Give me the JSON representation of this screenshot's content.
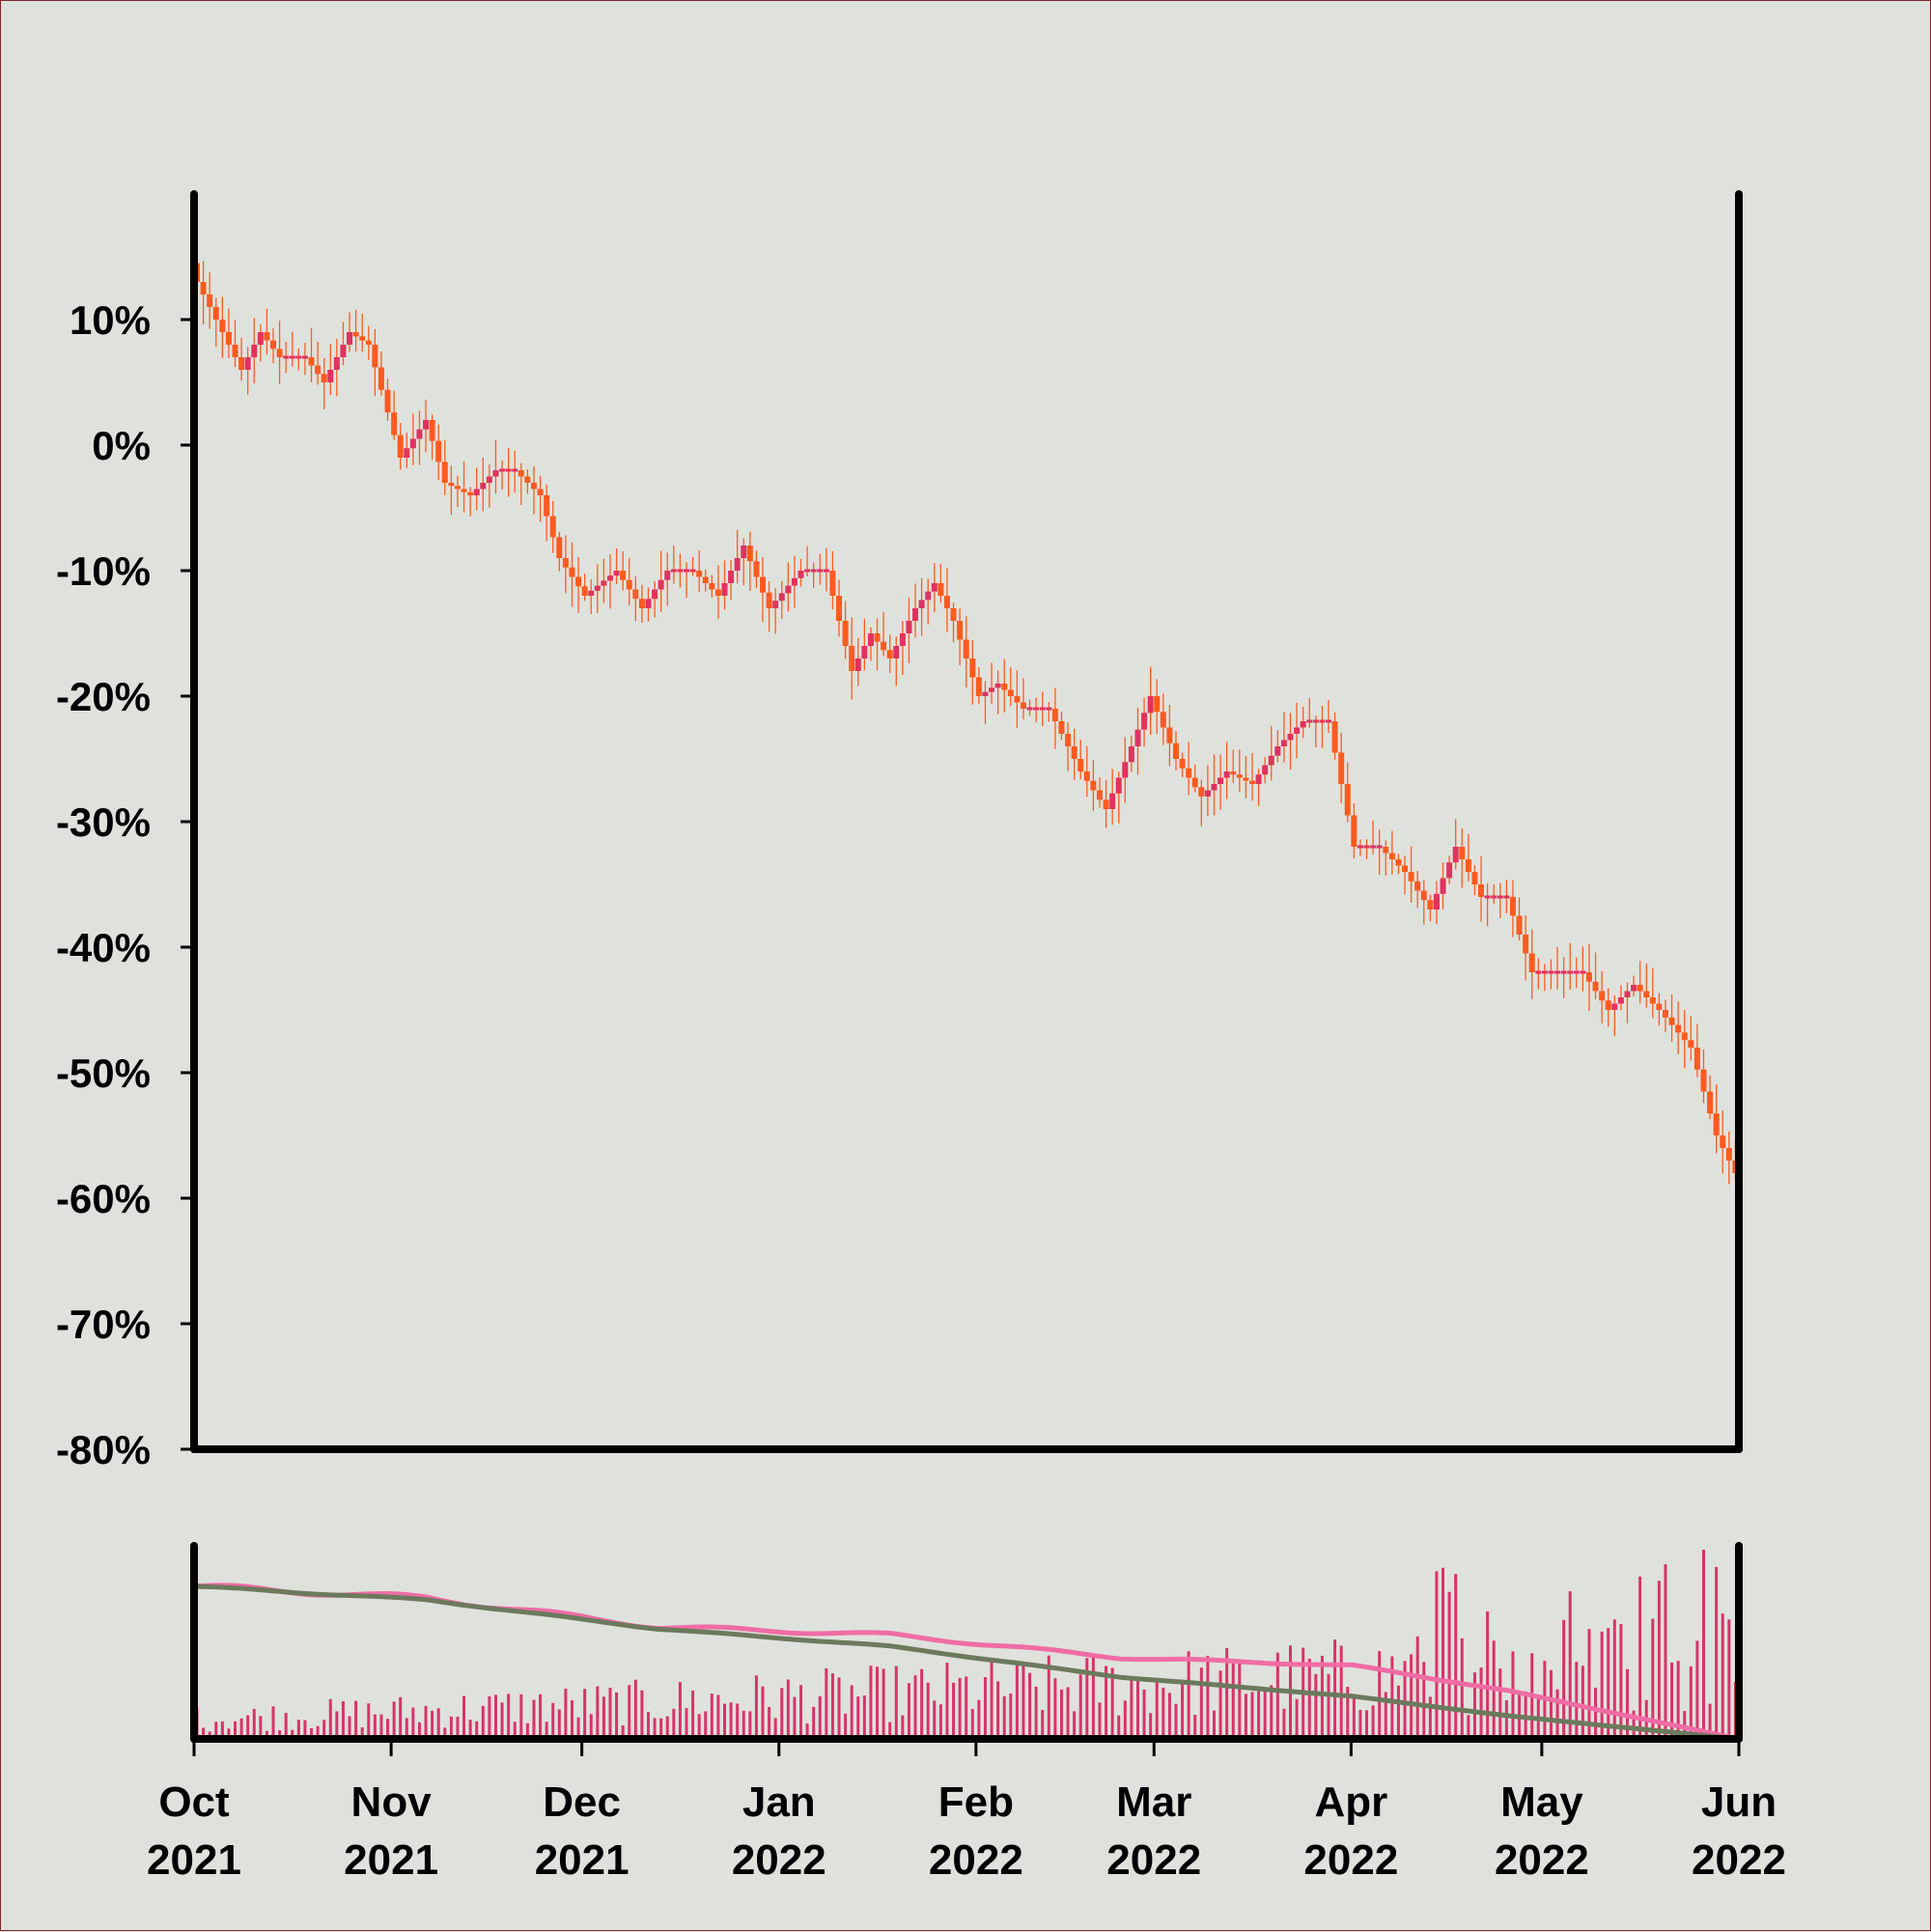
{
  "chart_data": [
    {
      "type": "ohlc",
      "y_unit": "%",
      "ylim": [
        -80,
        20
      ],
      "y_ticks": [
        "10%",
        "0%",
        "-10%",
        "-20%",
        "-30%",
        "-40%",
        "-50%",
        "-60%",
        "-70%",
        "-80%"
      ],
      "y_tick_values": [
        10,
        0,
        -10,
        -20,
        -30,
        -40,
        -50,
        -60,
        -70,
        -80
      ],
      "xlim": [
        "2021-10-01",
        "2022-06-01"
      ],
      "grid": false,
      "colors": {
        "up": "#e0335f",
        "down": "#ff5a1f"
      },
      "path_key_points": [
        [
          "2021-10-01",
          13
        ],
        [
          "2021-10-05",
          9
        ],
        [
          "2021-10-08",
          6
        ],
        [
          "2021-10-11",
          9
        ],
        [
          "2021-10-14",
          7
        ],
        [
          "2021-10-18",
          7
        ],
        [
          "2021-10-21",
          5
        ],
        [
          "2021-10-25",
          9
        ],
        [
          "2021-10-28",
          8
        ],
        [
          "2021-11-02",
          -1
        ],
        [
          "2021-11-06",
          2
        ],
        [
          "2021-11-09",
          -3
        ],
        [
          "2021-11-13",
          -4
        ],
        [
          "2021-11-17",
          -2
        ],
        [
          "2021-11-20",
          -2
        ],
        [
          "2021-11-24",
          -4
        ],
        [
          "2021-11-27",
          -9
        ],
        [
          "2021-12-01",
          -12
        ],
        [
          "2021-12-06",
          -10
        ],
        [
          "2021-12-10",
          -13
        ],
        [
          "2021-12-14",
          -10
        ],
        [
          "2021-12-18",
          -10
        ],
        [
          "2021-12-22",
          -12
        ],
        [
          "2021-12-26",
          -8
        ],
        [
          "2021-12-30",
          -13
        ],
        [
          "2022-01-04",
          -10
        ],
        [
          "2022-01-08",
          -10
        ],
        [
          "2022-01-12",
          -18
        ],
        [
          "2022-01-15",
          -15
        ],
        [
          "2022-01-18",
          -17
        ],
        [
          "2022-01-22",
          -13
        ],
        [
          "2022-01-25",
          -11
        ],
        [
          "2022-01-28",
          -14
        ],
        [
          "2022-02-01",
          -20
        ],
        [
          "2022-02-04",
          -19
        ],
        [
          "2022-02-08",
          -21
        ],
        [
          "2022-02-12",
          -21
        ],
        [
          "2022-02-17",
          -26
        ],
        [
          "2022-02-21",
          -29
        ],
        [
          "2022-02-25",
          -24
        ],
        [
          "2022-02-28",
          -20
        ],
        [
          "2022-03-04",
          -25
        ],
        [
          "2022-03-08",
          -28
        ],
        [
          "2022-03-12",
          -26
        ],
        [
          "2022-03-16",
          -27
        ],
        [
          "2022-03-20",
          -24
        ],
        [
          "2022-03-24",
          -22
        ],
        [
          "2022-03-28",
          -22
        ],
        [
          "2022-04-01",
          -32
        ],
        [
          "2022-04-05",
          -32
        ],
        [
          "2022-04-09",
          -34
        ],
        [
          "2022-04-13",
          -37
        ],
        [
          "2022-04-17",
          -32
        ],
        [
          "2022-04-21",
          -36
        ],
        [
          "2022-04-25",
          -36
        ],
        [
          "2022-04-29",
          -42
        ],
        [
          "2022-05-03",
          -42
        ],
        [
          "2022-05-07",
          -42
        ],
        [
          "2022-05-11",
          -45
        ],
        [
          "2022-05-15",
          -43
        ],
        [
          "2022-05-19",
          -45
        ],
        [
          "2022-05-24",
          -48
        ],
        [
          "2022-05-28",
          -55
        ],
        [
          "2022-06-01",
          -59
        ]
      ]
    },
    {
      "type": "bar+line",
      "name": "volume",
      "y_ticks": [],
      "x_ticks": [
        {
          "month": "Oct",
          "year": "2021"
        },
        {
          "month": "Nov",
          "year": "2021"
        },
        {
          "month": "Dec",
          "year": "2021"
        },
        {
          "month": "Jan",
          "year": "2022"
        },
        {
          "month": "Feb",
          "year": "2022"
        },
        {
          "month": "Mar",
          "year": "2022"
        },
        {
          "month": "Apr",
          "year": "2022"
        },
        {
          "month": "May",
          "year": "2022"
        },
        {
          "month": "Jun",
          "year": "2022"
        }
      ],
      "x_tick_dates": [
        "2021-10-01",
        "2021-11-01",
        "2021-12-01",
        "2022-01-01",
        "2022-02-01",
        "2022-03-01",
        "2022-04-01",
        "2022-05-01",
        "2022-06-01"
      ],
      "bar_color": "#d8336a",
      "line_colors": [
        "#f06ca6",
        "#6b7a5d"
      ],
      "line_fast_key_points": [
        [
          0,
          0.79
        ],
        [
          0.15,
          0.73
        ],
        [
          0.3,
          0.58
        ],
        [
          0.45,
          0.54
        ],
        [
          0.6,
          0.42
        ],
        [
          0.75,
          0.38
        ],
        [
          0.85,
          0.25
        ],
        [
          1.0,
          0.0
        ]
      ],
      "line_slow_key_points": [
        [
          0,
          0.79
        ],
        [
          0.15,
          0.72
        ],
        [
          0.3,
          0.57
        ],
        [
          0.45,
          0.48
        ],
        [
          0.6,
          0.32
        ],
        [
          0.75,
          0.22
        ],
        [
          0.85,
          0.12
        ],
        [
          1.0,
          0.0
        ]
      ]
    }
  ]
}
